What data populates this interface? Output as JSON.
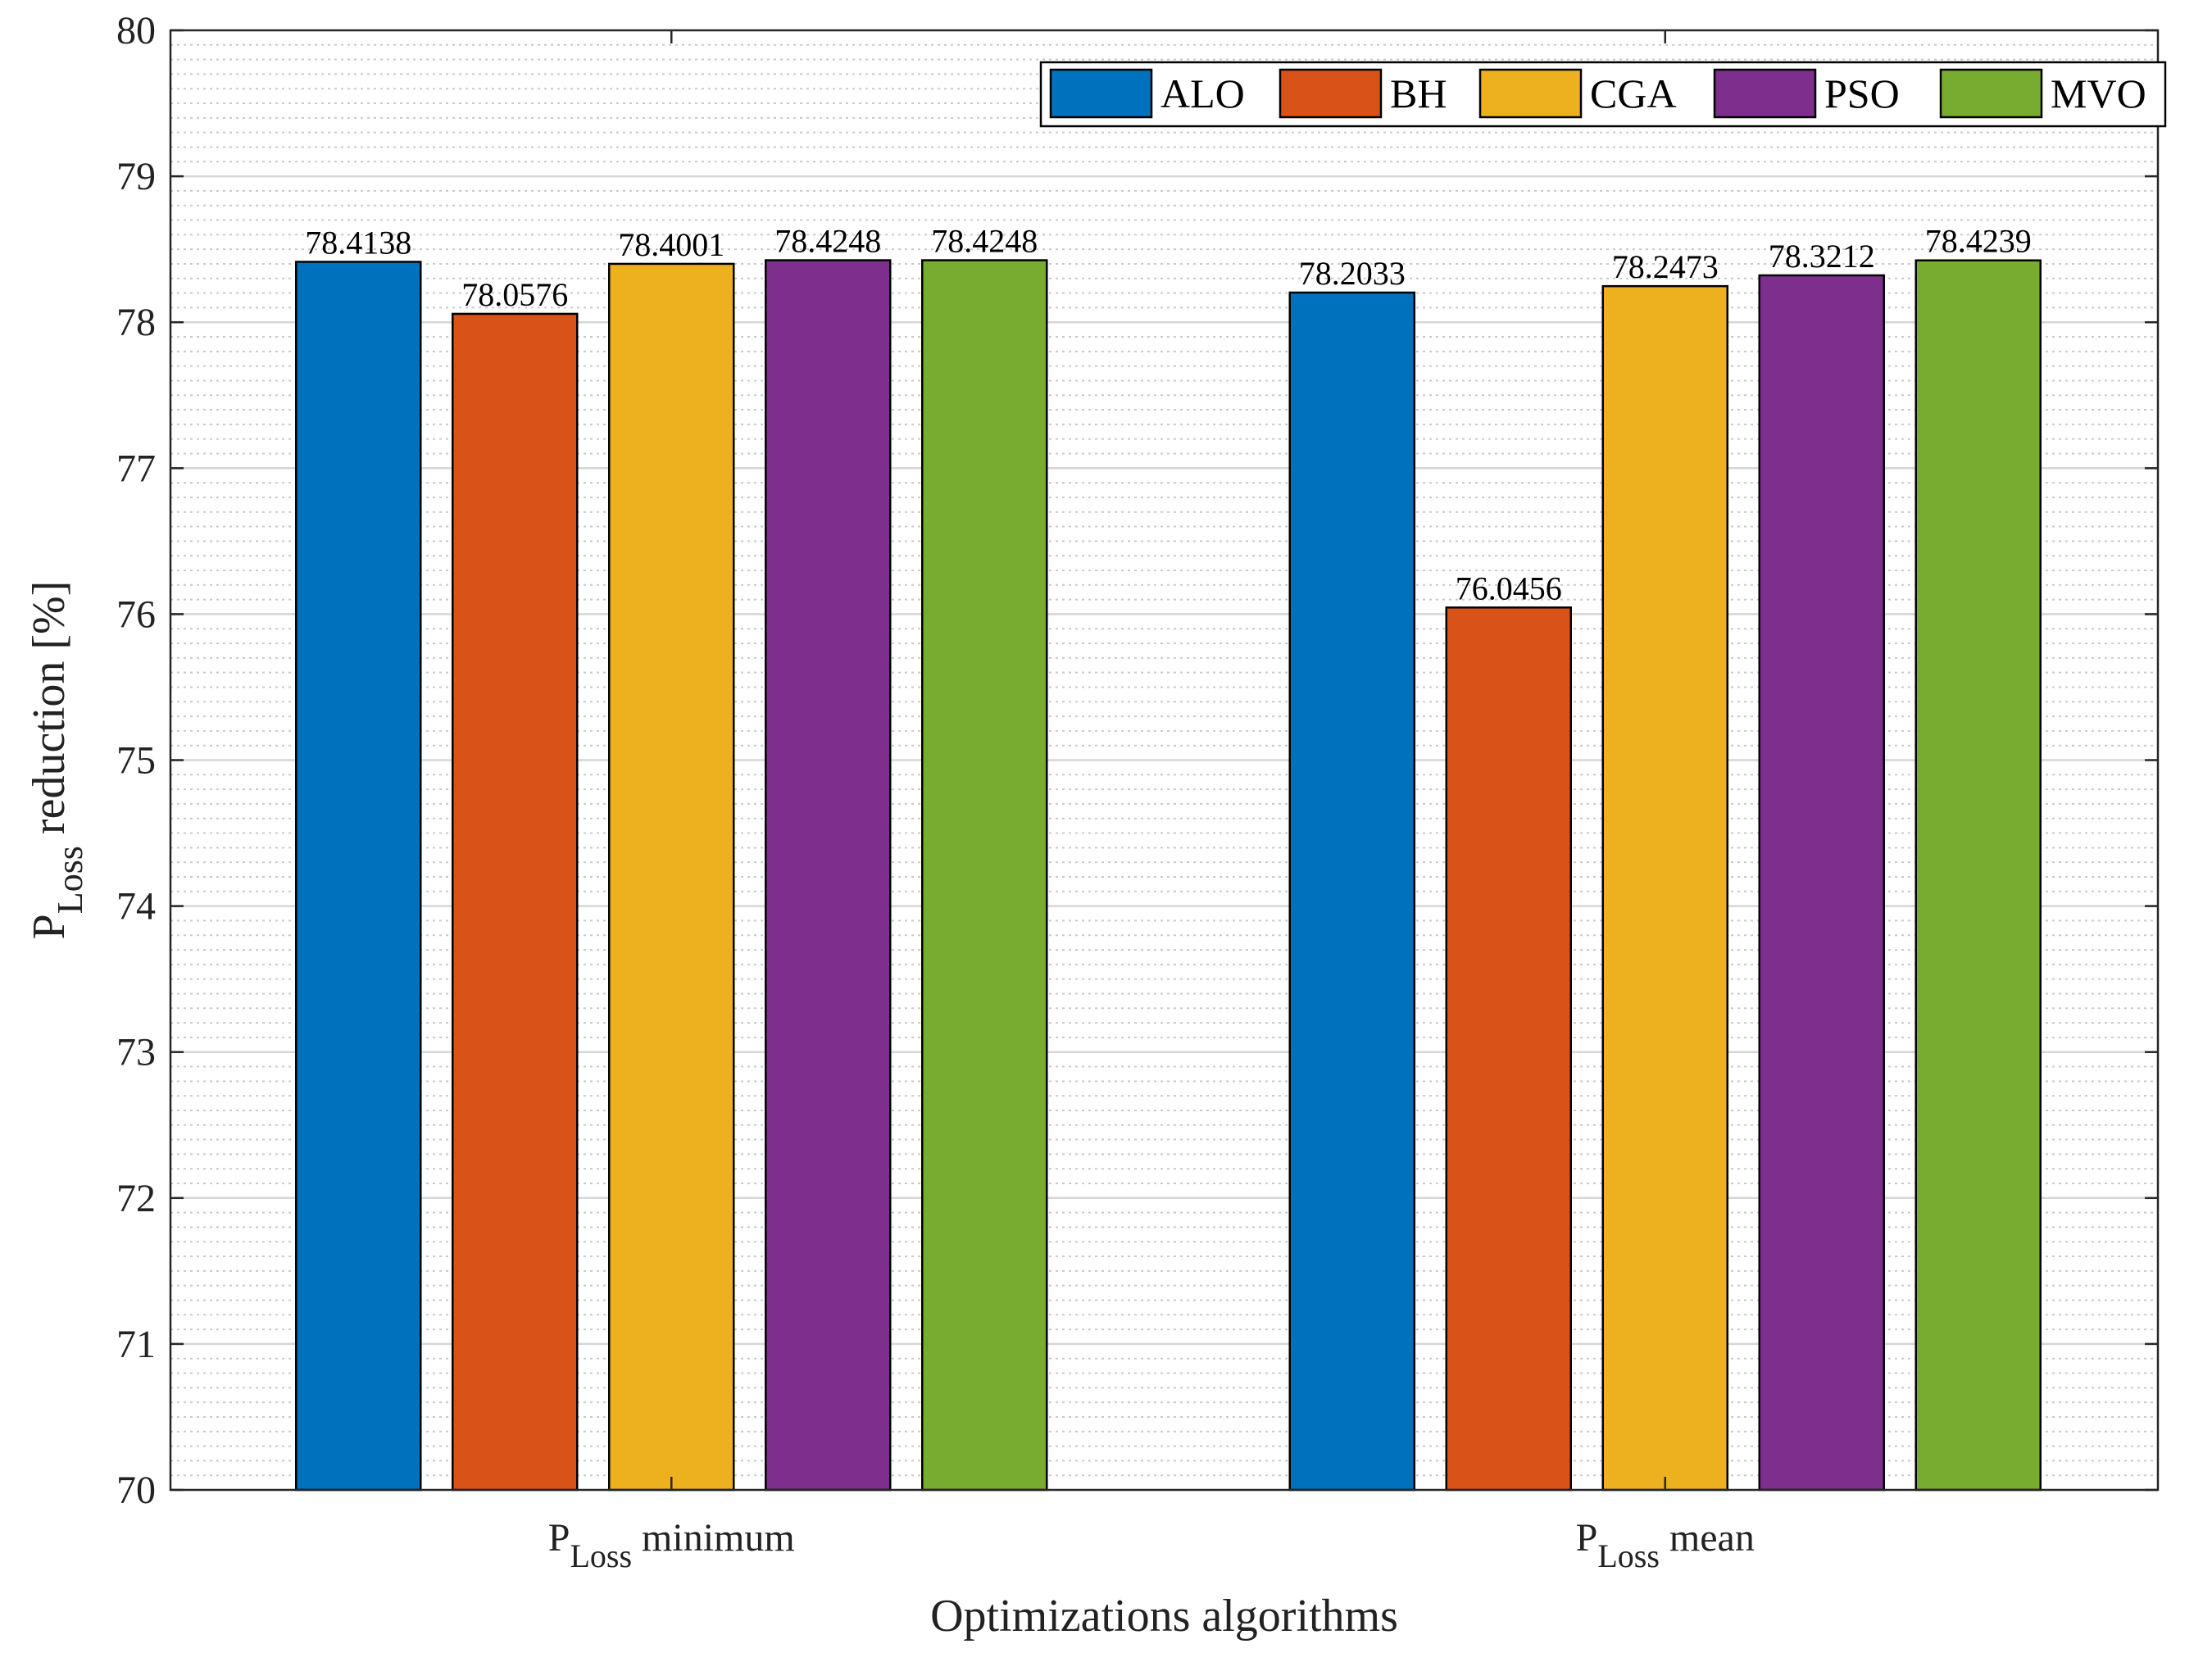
{
  "chart_data": {
    "type": "bar",
    "xlabel": "Optimizations algorithms",
    "ylabel": {
      "main": "P",
      "sub": "Loss",
      "rest": " reduction [%]"
    },
    "ylim": [
      70,
      80
    ],
    "yticks": [
      70,
      71,
      72,
      73,
      74,
      75,
      76,
      77,
      78,
      79,
      80
    ],
    "grid": "major and minor",
    "legend_position": "top-right",
    "categories": [
      {
        "main": "P",
        "sub": "Loss",
        "rest": " minimum"
      },
      {
        "main": "P",
        "sub": "Loss",
        "rest": " mean"
      }
    ],
    "series": [
      {
        "name": "ALO",
        "color": "#0072BD",
        "values": [
          78.4138,
          78.2033
        ],
        "labels": [
          "78.4138",
          "78.2033"
        ]
      },
      {
        "name": "BH",
        "color": "#D95319",
        "values": [
          78.0576,
          76.0456
        ],
        "labels": [
          "78.0576",
          "76.0456"
        ]
      },
      {
        "name": "CGA",
        "color": "#EDB120",
        "values": [
          78.4001,
          78.2473
        ],
        "labels": [
          "78.4001",
          "78.2473"
        ]
      },
      {
        "name": "PSO",
        "color": "#7E2F8E",
        "values": [
          78.4248,
          78.3212
        ],
        "labels": [
          "78.4248",
          "78.3212"
        ]
      },
      {
        "name": "MVO",
        "color": "#77AC30",
        "values": [
          78.4248,
          78.4239
        ],
        "labels": [
          "78.4248",
          "78.4239"
        ]
      }
    ]
  }
}
